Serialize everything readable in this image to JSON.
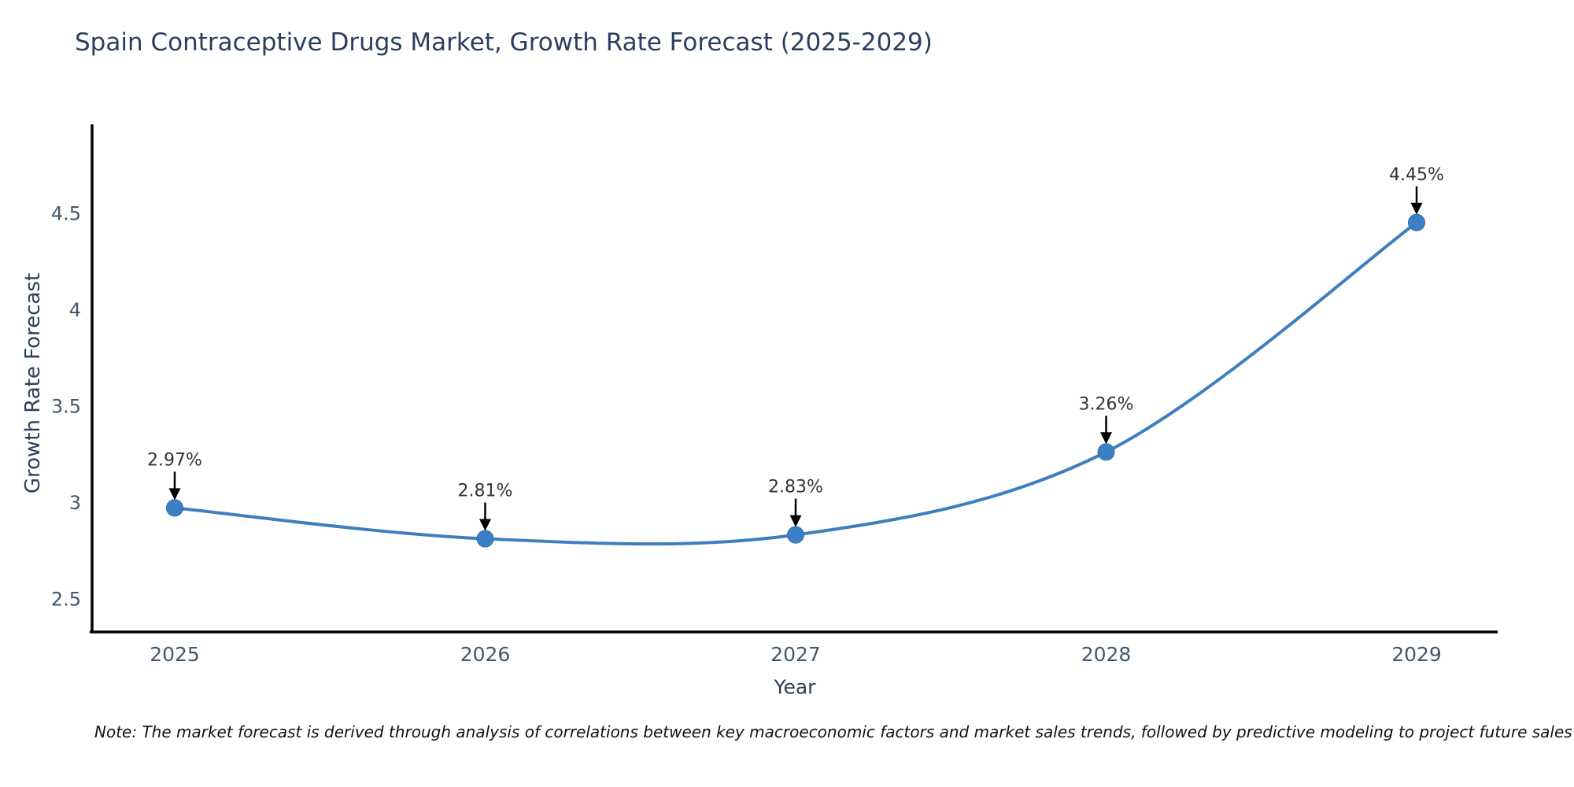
{
  "note": "Note: The market forecast is derived through analysis of correlations between key macroeconomic factors and market sales trends, followed by predictive modeling to project future sales",
  "chart_data": {
    "type": "line",
    "title": "Spain Contraceptive Drugs Market, Growth Rate Forecast (2025-2029)",
    "xlabel": "Year",
    "ylabel": "Growth Rate Forecast",
    "x": [
      2025,
      2026,
      2027,
      2028,
      2029
    ],
    "series": [
      {
        "name": "Growth Rate Forecast",
        "values": [
          2.97,
          2.81,
          2.83,
          3.26,
          4.45
        ]
      }
    ],
    "point_labels": [
      "2.97%",
      "2.81%",
      "2.83%",
      "3.26%",
      "4.45%"
    ],
    "xtick_labels": [
      "2025",
      "2026",
      "2027",
      "2028",
      "2029"
    ],
    "yticks": [
      2.5,
      3,
      3.5,
      4,
      4.5
    ],
    "ytick_labels": [
      "2.5",
      "3",
      "3.5",
      "4",
      "4.5"
    ],
    "ylim": [
      2.33,
      4.97
    ],
    "line_shape": "spline",
    "grid": false,
    "legend": "none",
    "colors": {
      "line": "#3e7ebf",
      "marker": "#3b80c4",
      "marker_edge": "#2e6ba8",
      "axis": "#000000",
      "annotation_text": "#333333",
      "annotation_arrow": "#000000",
      "tick_text": "#42576e",
      "title_text": "#2a3f5f",
      "note_text": "#111111"
    }
  }
}
